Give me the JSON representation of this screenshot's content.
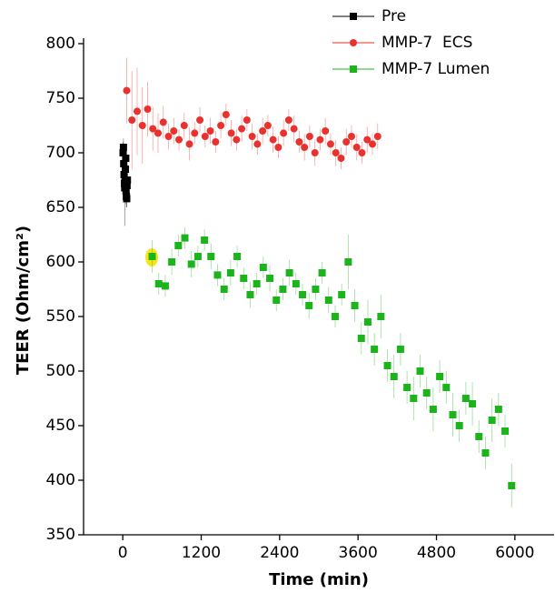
{
  "chart_data": {
    "type": "scatter",
    "x_label": "Time (min)",
    "y_label": "TEER (Ohm/cm²)",
    "xlim": [
      -600,
      6600
    ],
    "ylim": [
      350,
      800
    ],
    "xticks": [
      0,
      1200,
      2400,
      3600,
      4800,
      6000
    ],
    "yticks": [
      350,
      400,
      450,
      500,
      550,
      600,
      650,
      700,
      750,
      800
    ],
    "legend": "top-right",
    "series": [
      {
        "name": "Pre",
        "color": "#000000",
        "marker": "square",
        "x": [
          5,
          10,
          15,
          20,
          25,
          30,
          35,
          40,
          45,
          50,
          55,
          60,
          65,
          70
        ],
        "values": [
          700,
          705,
          690,
          680,
          672,
          668,
          675,
          685,
          695,
          665,
          660,
          658,
          670,
          675
        ],
        "errors": [
          10,
          8,
          12,
          10,
          15,
          35,
          10,
          8,
          10,
          12,
          10,
          8,
          10,
          12
        ]
      },
      {
        "name": "MMP-7  ECS",
        "color": "#e8322e",
        "marker": "circle",
        "x": [
          60,
          140,
          220,
          300,
          380,
          460,
          540,
          620,
          700,
          780,
          860,
          940,
          1020,
          1100,
          1180,
          1260,
          1340,
          1420,
          1500,
          1580,
          1660,
          1740,
          1820,
          1900,
          1980,
          2060,
          2140,
          2220,
          2300,
          2380,
          2460,
          2540,
          2620,
          2700,
          2780,
          2860,
          2940,
          3020,
          3100,
          3180,
          3260,
          3340,
          3420,
          3500,
          3580,
          3660,
          3740,
          3820,
          3900
        ],
        "values": [
          757,
          730,
          738,
          725,
          740,
          722,
          718,
          728,
          715,
          720,
          712,
          725,
          708,
          718,
          730,
          715,
          720,
          710,
          725,
          735,
          718,
          712,
          722,
          730,
          715,
          708,
          720,
          725,
          712,
          705,
          718,
          730,
          722,
          710,
          705,
          715,
          700,
          712,
          720,
          708,
          700,
          695,
          710,
          715,
          705,
          700,
          712,
          708,
          715
        ],
        "errors": [
          30,
          45,
          40,
          35,
          25,
          20,
          18,
          15,
          12,
          12,
          10,
          12,
          15,
          10,
          12,
          10,
          12,
          10,
          12,
          10,
          12,
          10,
          12,
          10,
          12,
          10,
          12,
          10,
          12,
          10,
          12,
          10,
          12,
          10,
          12,
          10,
          12,
          10,
          12,
          10,
          12,
          10,
          12,
          10,
          12,
          10,
          12,
          10,
          12
        ]
      },
      {
        "name": "MMP-7 Lumen",
        "color": "#1db31d",
        "marker": "square",
        "x": [
          450,
          550,
          650,
          750,
          850,
          950,
          1050,
          1150,
          1250,
          1350,
          1450,
          1550,
          1650,
          1750,
          1850,
          1950,
          2050,
          2150,
          2250,
          2350,
          2450,
          2550,
          2650,
          2750,
          2850,
          2950,
          3050,
          3150,
          3250,
          3350,
          3450,
          3550,
          3650,
          3750,
          3850,
          3950,
          4050,
          4150,
          4250,
          4350,
          4450,
          4550,
          4650,
          4750,
          4850,
          4950,
          5050,
          5150,
          5250,
          5350,
          5450,
          5550,
          5650,
          5750,
          5850,
          5950
        ],
        "values": [
          605,
          580,
          578,
          600,
          615,
          622,
          598,
          605,
          620,
          605,
          588,
          575,
          590,
          605,
          585,
          570,
          580,
          595,
          585,
          565,
          575,
          590,
          580,
          570,
          560,
          575,
          590,
          565,
          550,
          570,
          600,
          560,
          530,
          545,
          520,
          550,
          505,
          495,
          520,
          485,
          475,
          500,
          480,
          465,
          495,
          485,
          460,
          450,
          475,
          470,
          440,
          425,
          455,
          465,
          445,
          395
        ],
        "errors": [
          15,
          10,
          10,
          12,
          10,
          10,
          12,
          10,
          10,
          12,
          10,
          10,
          12,
          10,
          10,
          12,
          10,
          10,
          12,
          10,
          10,
          12,
          10,
          10,
          12,
          10,
          10,
          12,
          10,
          10,
          25,
          15,
          15,
          20,
          15,
          20,
          15,
          20,
          15,
          15,
          20,
          15,
          15,
          20,
          15,
          15,
          20,
          15,
          15,
          20,
          15,
          15,
          20,
          15,
          15,
          20
        ]
      }
    ]
  }
}
